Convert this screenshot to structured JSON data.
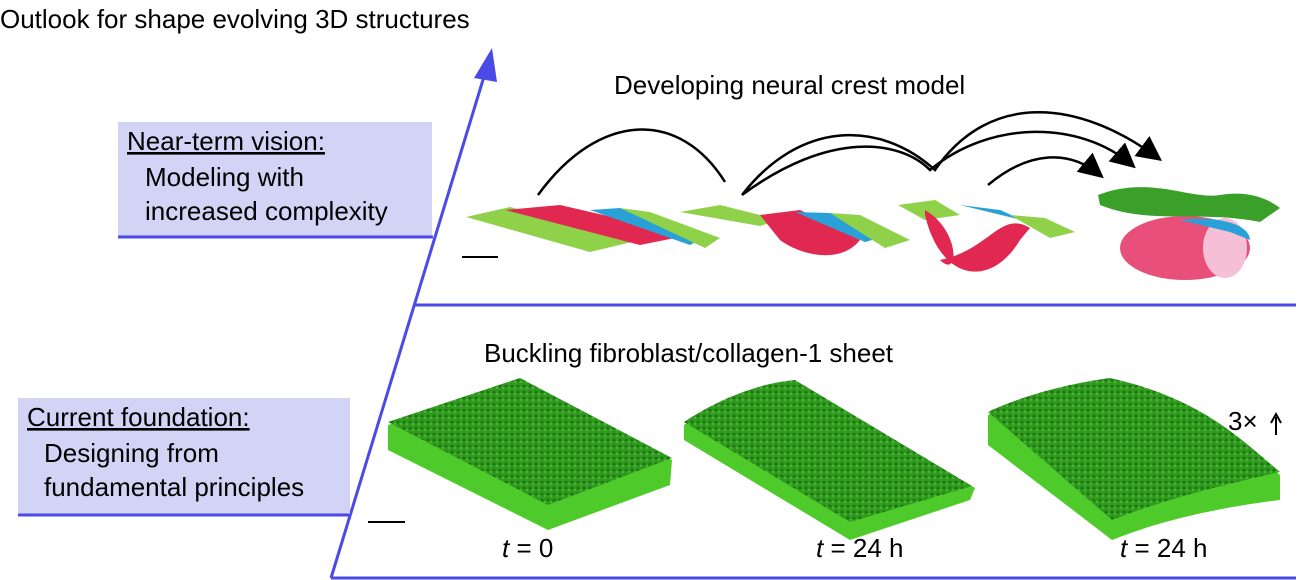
{
  "title": "Outlook for shape evolving 3D structures",
  "near_term": {
    "heading": "Near-term vision:",
    "lines": [
      "Modeling with",
      "increased complexity"
    ]
  },
  "current": {
    "heading": "Current foundation:",
    "lines": [
      "Designing from",
      "fundamental principles"
    ]
  },
  "top_panel": {
    "title": "Developing neural crest model"
  },
  "bottom_panel": {
    "title": "Buckling fibroblast/collagen-1 sheet",
    "scale_note": "3×",
    "labels": [
      {
        "symbol": "t",
        "text": "= 0"
      },
      {
        "symbol": "t",
        "text": "= 24 h"
      },
      {
        "symbol": "t",
        "text": "= 24 h"
      }
    ]
  }
}
